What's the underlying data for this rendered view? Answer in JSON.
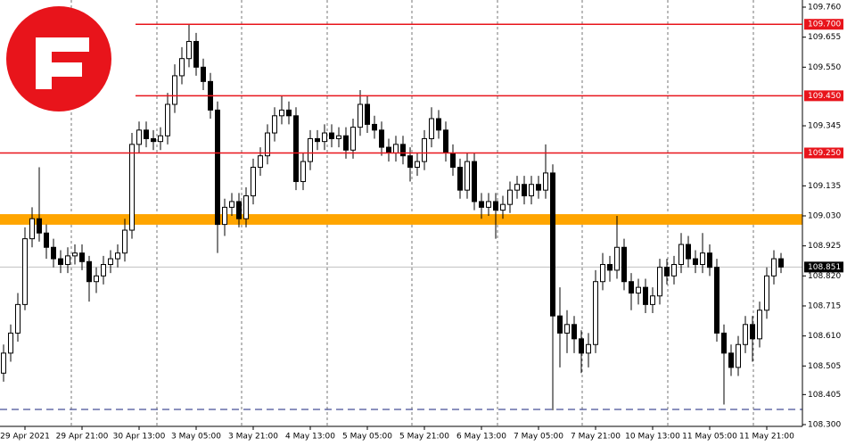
{
  "chart_data": {
    "type": "candlestick",
    "up_color": "#ffffff",
    "down_color": "#000000",
    "ylim": [
      108.3,
      109.76
    ],
    "yticks": [
      {
        "value": 109.76,
        "label": "109.760"
      },
      {
        "value": 109.655,
        "label": "109.655"
      },
      {
        "value": 109.55,
        "label": "109.550"
      },
      {
        "value": 109.345,
        "label": "109.345"
      },
      {
        "value": 109.135,
        "label": "109.135"
      },
      {
        "value": 109.03,
        "label": "109.030"
      },
      {
        "value": 108.925,
        "label": "108.925"
      },
      {
        "value": 108.82,
        "label": "108.820"
      },
      {
        "value": 108.715,
        "label": "108.715"
      },
      {
        "value": 108.61,
        "label": "108.610"
      },
      {
        "value": 108.505,
        "label": "108.505"
      },
      {
        "value": 108.405,
        "label": "108.405"
      },
      {
        "value": 108.3,
        "label": "108.300"
      }
    ],
    "levels": [
      {
        "value": 109.7,
        "label": "109.700",
        "color": "#e8141b"
      },
      {
        "value": 109.45,
        "label": "109.450",
        "color": "#e8141b"
      },
      {
        "value": 109.25,
        "label": "109.250",
        "color": "#e8141b"
      }
    ],
    "zone": {
      "range": [
        108.999,
        109.036
      ],
      "color": "#ffa500"
    },
    "support": {
      "value": 108.353,
      "color": "#1a237e"
    },
    "last_price": {
      "value": 108.851,
      "label": "108.851"
    },
    "categories": [
      null,
      null,
      null,
      "29 Apr 2021",
      null,
      null,
      null,
      null,
      null,
      null,
      null,
      "29 Apr 21:00",
      null,
      null,
      null,
      null,
      null,
      null,
      null,
      "30 Apr 13:00",
      null,
      null,
      null,
      null,
      null,
      null,
      null,
      "3 May 05:00",
      null,
      null,
      null,
      null,
      null,
      null,
      null,
      "3 May 21:00",
      null,
      null,
      null,
      null,
      null,
      null,
      null,
      "4 May 13:00",
      null,
      null,
      null,
      null,
      null,
      null,
      null,
      "5 May 05:00",
      null,
      null,
      null,
      null,
      null,
      null,
      null,
      "5 May 21:00",
      null,
      null,
      null,
      null,
      null,
      null,
      null,
      "6 May 13:00",
      null,
      null,
      null,
      null,
      null,
      null,
      null,
      "7 May 05:00",
      null,
      null,
      null,
      null,
      null,
      null,
      null,
      "7 May 21:00",
      null,
      null,
      null,
      null,
      null,
      null,
      null,
      "10 May 13:00",
      null,
      null,
      null,
      null,
      null,
      null,
      null,
      "11 May 05:00",
      null,
      null,
      null,
      null,
      null,
      null,
      null,
      "11 May 21:00",
      null,
      null
    ],
    "open": [
      108.48,
      108.55,
      108.62,
      108.72,
      108.95,
      109.02,
      108.97,
      108.92,
      108.88,
      108.86,
      108.89,
      108.9,
      108.87,
      108.8,
      108.82,
      108.86,
      108.88,
      108.9,
      108.98,
      109.28,
      109.33,
      109.3,
      109.29,
      109.31,
      109.42,
      109.52,
      109.58,
      109.64,
      109.55,
      109.5,
      109.4,
      109.0,
      109.06,
      109.08,
      109.02,
      109.1,
      109.2,
      109.24,
      109.32,
      109.38,
      109.4,
      109.38,
      109.15,
      109.22,
      109.3,
      109.29,
      109.32,
      109.3,
      109.31,
      109.26,
      109.34,
      109.42,
      109.35,
      109.33,
      109.27,
      109.25,
      109.28,
      109.24,
      109.2,
      109.22,
      109.3,
      109.37,
      109.33,
      109.25,
      109.2,
      109.12,
      109.22,
      109.08,
      109.06,
      109.08,
      109.05,
      109.07,
      109.12,
      109.14,
      109.1,
      109.14,
      109.12,
      109.18,
      108.68,
      108.62,
      108.65,
      108.6,
      108.55,
      108.58,
      108.8,
      108.86,
      108.84,
      108.92,
      108.8,
      108.76,
      108.78,
      108.72,
      108.75,
      108.85,
      108.82,
      108.86,
      108.93,
      108.88,
      108.86,
      108.9,
      108.85,
      108.62,
      108.55,
      108.5,
      108.58,
      108.65,
      108.6,
      108.7,
      108.82,
      108.88
    ],
    "high": [
      108.58,
      108.65,
      108.76,
      108.99,
      109.06,
      109.2,
      109.0,
      108.95,
      108.91,
      108.92,
      108.93,
      108.93,
      108.89,
      108.85,
      108.89,
      108.91,
      108.93,
      109.02,
      109.32,
      109.36,
      109.36,
      109.33,
      109.34,
      109.46,
      109.56,
      109.62,
      109.7,
      109.67,
      109.58,
      109.53,
      109.43,
      109.09,
      109.11,
      109.11,
      109.13,
      109.23,
      109.27,
      109.35,
      109.41,
      109.45,
      109.43,
      109.41,
      109.25,
      109.33,
      109.33,
      109.35,
      109.35,
      109.34,
      109.34,
      109.37,
      109.47,
      109.45,
      109.38,
      109.36,
      109.3,
      109.31,
      109.31,
      109.27,
      109.25,
      109.33,
      109.41,
      109.4,
      109.36,
      109.28,
      109.23,
      109.25,
      109.25,
      109.11,
      109.11,
      109.11,
      109.1,
      109.15,
      109.17,
      109.17,
      109.17,
      109.17,
      109.28,
      109.21,
      108.78,
      108.7,
      108.68,
      108.63,
      108.62,
      108.84,
      108.9,
      108.89,
      109.03,
      108.95,
      108.83,
      108.81,
      108.81,
      108.78,
      108.88,
      108.88,
      108.89,
      108.97,
      108.96,
      108.91,
      108.97,
      108.93,
      108.88,
      108.65,
      108.58,
      108.61,
      108.68,
      108.68,
      108.73,
      108.85,
      108.91,
      108.9
    ],
    "low": [
      108.45,
      108.52,
      108.59,
      108.7,
      108.92,
      108.94,
      108.88,
      108.85,
      108.83,
      108.83,
      108.86,
      108.84,
      108.73,
      108.76,
      108.79,
      108.83,
      108.85,
      108.87,
      108.95,
      109.25,
      109.27,
      109.26,
      109.26,
      109.28,
      109.39,
      109.49,
      109.55,
      109.52,
      109.47,
      109.37,
      108.9,
      108.96,
      109.03,
      108.99,
      108.99,
      109.07,
      109.17,
      109.21,
      109.29,
      109.35,
      109.35,
      109.12,
      109.12,
      109.19,
      109.26,
      109.26,
      109.27,
      109.27,
      109.23,
      109.23,
      109.31,
      109.32,
      109.3,
      109.24,
      109.22,
      109.22,
      109.21,
      109.15,
      109.17,
      109.19,
      109.27,
      109.3,
      109.22,
      109.17,
      109.09,
      109.09,
      109.05,
      109.02,
      109.03,
      108.95,
      109.02,
      109.04,
      109.09,
      109.07,
      109.07,
      109.09,
      109.09,
      108.35,
      108.5,
      108.55,
      108.55,
      108.48,
      108.5,
      108.55,
      108.77,
      108.8,
      108.81,
      108.77,
      108.7,
      108.72,
      108.69,
      108.69,
      108.72,
      108.79,
      108.79,
      108.83,
      108.85,
      108.83,
      108.83,
      108.82,
      108.59,
      108.37,
      108.47,
      108.47,
      108.55,
      108.52,
      108.57,
      108.67,
      108.79,
      108.83
    ],
    "close": [
      108.55,
      108.62,
      108.72,
      108.95,
      109.02,
      108.97,
      108.92,
      108.88,
      108.86,
      108.89,
      108.9,
      108.87,
      108.8,
      108.82,
      108.86,
      108.88,
      108.9,
      108.98,
      109.28,
      109.33,
      109.3,
      109.29,
      109.31,
      109.42,
      109.52,
      109.58,
      109.64,
      109.55,
      109.5,
      109.4,
      109.0,
      109.06,
      109.08,
      109.02,
      109.1,
      109.2,
      109.24,
      109.32,
      109.38,
      109.4,
      109.38,
      109.15,
      109.22,
      109.3,
      109.29,
      109.32,
      109.3,
      109.31,
      109.26,
      109.34,
      109.42,
      109.35,
      109.33,
      109.27,
      109.25,
      109.28,
      109.24,
      109.2,
      109.22,
      109.3,
      109.37,
      109.33,
      109.25,
      109.2,
      109.12,
      109.22,
      109.08,
      109.06,
      109.08,
      109.05,
      109.07,
      109.12,
      109.14,
      109.1,
      109.14,
      109.12,
      109.18,
      108.68,
      108.62,
      108.65,
      108.6,
      108.55,
      108.58,
      108.8,
      108.86,
      108.84,
      108.92,
      108.8,
      108.76,
      108.78,
      108.72,
      108.75,
      108.85,
      108.82,
      108.86,
      108.93,
      108.88,
      108.86,
      108.9,
      108.85,
      108.62,
      108.55,
      108.5,
      108.58,
      108.65,
      108.6,
      108.7,
      108.82,
      108.88,
      108.851
    ]
  }
}
